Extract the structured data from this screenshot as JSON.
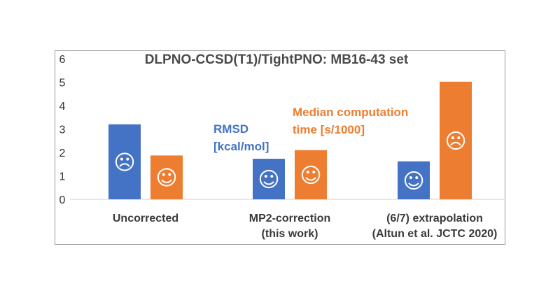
{
  "chart_data": {
    "type": "bar",
    "title": "DLPNO-CCSD(T1)/TightPNO: MB16-43 set",
    "xlabel": "",
    "ylabel": "",
    "ylim": [
      0,
      6
    ],
    "yticks": [
      "0",
      "1",
      "2",
      "3",
      "4",
      "5",
      "6"
    ],
    "grid": false,
    "categories": [
      [
        "Uncorrected"
      ],
      [
        "MP2-correction",
        "(this work)"
      ],
      [
        "(6/7) extrapolation",
        "(Altun et al. JCTC 2020)"
      ]
    ],
    "series": [
      {
        "values": [
          3.2,
          1.73,
          1.62
        ],
        "color": "#4472c4",
        "label_lines": [
          "RMSD",
          "[kcal/mol]"
        ],
        "faces": [
          "☹",
          "☺",
          "☺"
        ]
      },
      {
        "values": [
          1.87,
          2.1,
          5.02
        ],
        "color": "#ed7d31",
        "label_lines": [
          "Median computation",
          "time [s/1000]"
        ],
        "faces": [
          "☺",
          "☺",
          "☹"
        ]
      }
    ]
  }
}
